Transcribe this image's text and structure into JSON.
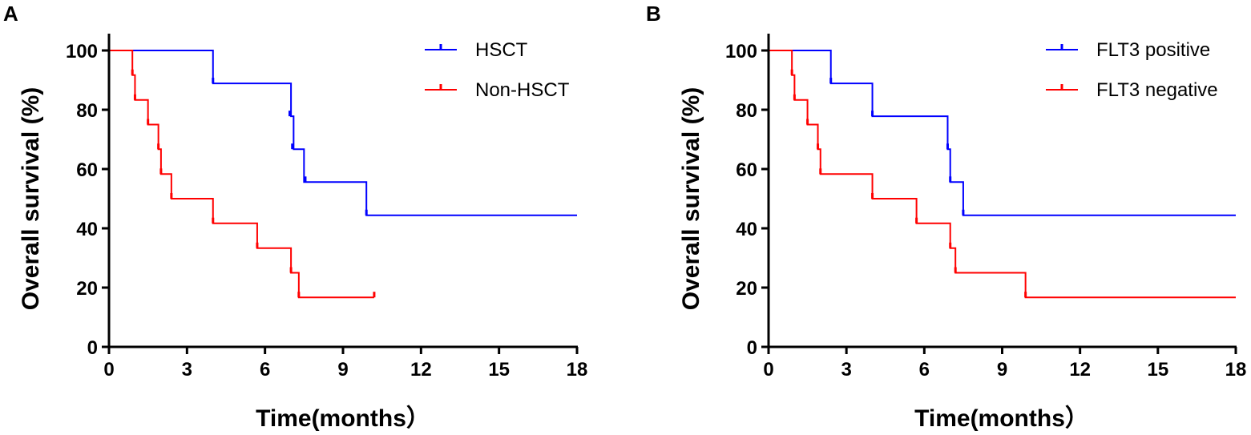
{
  "chart_data": [
    {
      "type": "line",
      "subtype": "kaplan-meier-step",
      "panel_label": "A",
      "xlabel": "Time(months）",
      "ylabel": "Overall survival (%)",
      "xlim": [
        0,
        18
      ],
      "ylim": [
        0,
        100
      ],
      "xticks": [
        0,
        3,
        6,
        9,
        12,
        15,
        18
      ],
      "yticks": [
        0,
        20,
        40,
        60,
        80,
        100
      ],
      "legend_position": "top-right",
      "series": [
        {
          "name": "HSCT",
          "color": "#0000ff",
          "steps": [
            [
              0,
              100
            ],
            [
              4.0,
              88.9
            ],
            [
              7.0,
              77.8
            ],
            [
              7.1,
              66.7
            ],
            [
              7.5,
              55.6
            ],
            [
              9.9,
              44.4
            ]
          ],
          "end": 18,
          "censor": [
            [
              4.0,
              88.9
            ],
            [
              6.95,
              77.8
            ],
            [
              7.05,
              66.7
            ],
            [
              7.55,
              55.6
            ],
            [
              9.9,
              44.4
            ]
          ]
        },
        {
          "name": "Non-HSCT",
          "color": "#ff0000",
          "steps": [
            [
              0,
              100
            ],
            [
              0.9,
              91.7
            ],
            [
              1.0,
              83.3
            ],
            [
              1.5,
              75.0
            ],
            [
              1.9,
              66.7
            ],
            [
              2.0,
              58.3
            ],
            [
              2.4,
              50.0
            ],
            [
              4.0,
              41.7
            ],
            [
              5.7,
              33.3
            ],
            [
              7.0,
              25.0
            ],
            [
              7.3,
              16.7
            ]
          ],
          "end": 10.2,
          "censor": [
            [
              0.9,
              91.7
            ],
            [
              1.0,
              83.3
            ],
            [
              1.5,
              75.0
            ],
            [
              1.9,
              66.7
            ],
            [
              2.0,
              58.3
            ],
            [
              2.4,
              50.0
            ],
            [
              4.0,
              41.7
            ],
            [
              5.7,
              33.3
            ],
            [
              7.0,
              25.0
            ],
            [
              7.3,
              16.7
            ],
            [
              10.2,
              16.7
            ]
          ]
        }
      ]
    },
    {
      "type": "line",
      "subtype": "kaplan-meier-step",
      "panel_label": "B",
      "xlabel": "Time(months）",
      "ylabel": "Overall survival (%)",
      "xlim": [
        0,
        18
      ],
      "ylim": [
        0,
        100
      ],
      "xticks": [
        0,
        3,
        6,
        9,
        12,
        15,
        18
      ],
      "yticks": [
        0,
        20,
        40,
        60,
        80,
        100
      ],
      "legend_position": "top-right",
      "series": [
        {
          "name": "FLT3 positive",
          "color": "#0000ff",
          "steps": [
            [
              0,
              100
            ],
            [
              2.4,
              88.9
            ],
            [
              4.0,
              77.8
            ],
            [
              6.9,
              66.7
            ],
            [
              7.0,
              55.6
            ],
            [
              7.5,
              44.4
            ]
          ],
          "end": 18,
          "censor": [
            [
              2.4,
              88.9
            ],
            [
              4.0,
              77.8
            ],
            [
              6.9,
              66.7
            ],
            [
              7.0,
              55.6
            ],
            [
              7.5,
              44.4
            ]
          ]
        },
        {
          "name": "FLT3 negative",
          "color": "#ff0000",
          "steps": [
            [
              0,
              100
            ],
            [
              0.9,
              91.7
            ],
            [
              1.0,
              83.3
            ],
            [
              1.5,
              75.0
            ],
            [
              1.9,
              66.7
            ],
            [
              2.0,
              58.3
            ],
            [
              4.0,
              50.0
            ],
            [
              5.7,
              41.7
            ],
            [
              7.0,
              33.3
            ],
            [
              7.2,
              25.0
            ],
            [
              9.9,
              16.7
            ]
          ],
          "end": 18,
          "censor": [
            [
              0.9,
              91.7
            ],
            [
              1.0,
              83.3
            ],
            [
              1.5,
              75.0
            ],
            [
              1.9,
              66.7
            ],
            [
              2.0,
              58.3
            ],
            [
              4.0,
              50.0
            ],
            [
              5.7,
              41.7
            ],
            [
              7.0,
              33.3
            ],
            [
              7.2,
              25.0
            ],
            [
              9.9,
              16.7
            ]
          ]
        }
      ]
    }
  ]
}
